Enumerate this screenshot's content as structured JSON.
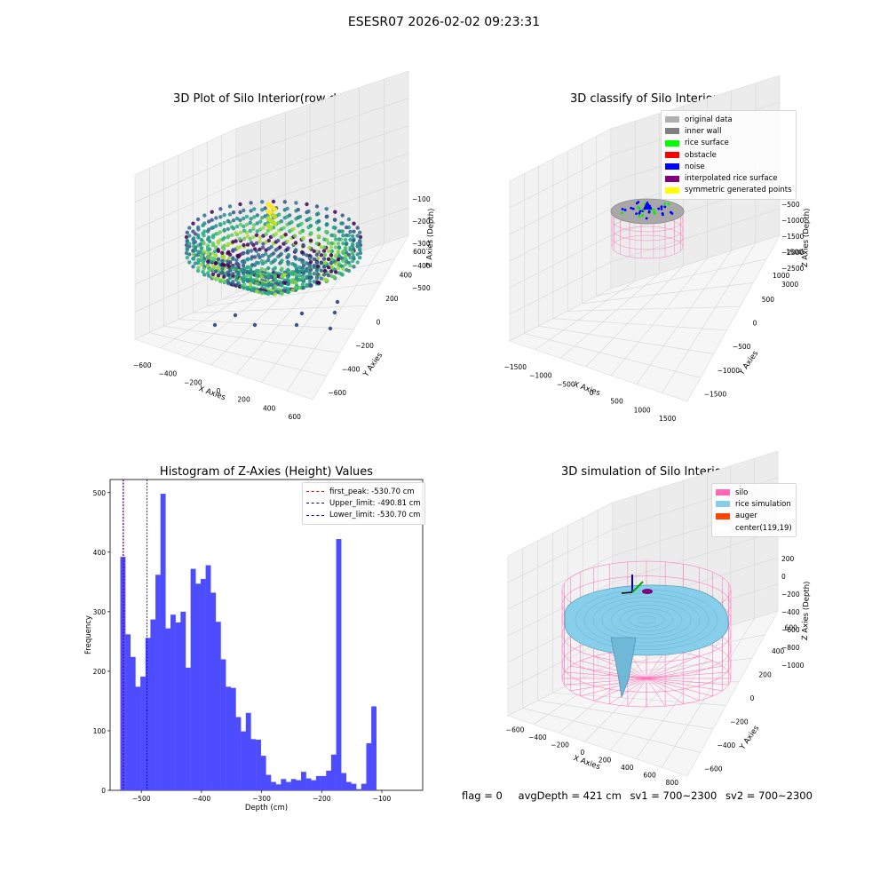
{
  "suptitle": "ESESR07 2026-02-02 09:23:31",
  "panels": {
    "raw": {
      "title": "3D Plot of Silo Interior(row data)",
      "xlabel": "X Axies",
      "ylabel": "Y Axies",
      "zlabel": "Z Axies (Depth)",
      "xticks": [
        "−600",
        "−400",
        "−200",
        "0",
        "200",
        "400",
        "600"
      ],
      "yticks": [
        "−600",
        "−400",
        "−200",
        "0",
        "200",
        "400",
        "600"
      ],
      "zticks": [
        "−100",
        "−200",
        "−300",
        "−400",
        "−500"
      ]
    },
    "classify": {
      "title": "3D classify of Silo Interior",
      "xlabel": "X Axies",
      "ylabel": "Y Axies",
      "zlabel": "Z Axies (Depth)",
      "xticks": [
        "−1500",
        "−1000",
        "−500",
        "0",
        "500",
        "1000",
        "1500"
      ],
      "yticks": [
        "−1500",
        "−1000",
        "−500",
        "0",
        "500",
        "1000",
        "1500"
      ],
      "zticks": [
        "−500",
        "−1000",
        "−1500",
        "−2000",
        "−2500",
        "3000"
      ],
      "legend": [
        {
          "label": "original data",
          "color": "#b0b0b0"
        },
        {
          "label": "inner wall",
          "color": "#808080"
        },
        {
          "label": "rice surface",
          "color": "#00ff00"
        },
        {
          "label": "obstacle",
          "color": "#ff0000"
        },
        {
          "label": "noise",
          "color": "#0000ff"
        },
        {
          "label": "interpolated rice surface",
          "color": "#800080"
        },
        {
          "label": "symmetric generated points",
          "color": "#ffff00"
        }
      ]
    },
    "simulation": {
      "title": "3D simulation of Silo Interior",
      "xlabel": "X Axies",
      "ylabel": "Y Axies",
      "zlabel": "Z Axies (Depth)",
      "xticks": [
        "−600",
        "−400",
        "−200",
        "0",
        "200",
        "400",
        "600",
        "800"
      ],
      "yticks": [
        "−600",
        "−400",
        "−200",
        "0",
        "200",
        "400",
        "600"
      ],
      "zticks": [
        "200",
        "0",
        "−200",
        "−400",
        "−600",
        "−800",
        "−1000"
      ],
      "legend": [
        {
          "label": "silo",
          "color": "#ff69b4"
        },
        {
          "label": "rice simulation",
          "color": "#87ceeb"
        },
        {
          "label": "auger",
          "color": "#ff4500"
        },
        {
          "label": "center(119,19)",
          "color": "#ffffff"
        }
      ]
    }
  },
  "chart_data": {
    "type": "bar",
    "title": "Histogram of Z-Axies (Height) Values",
    "xlabel": "Depth (cm)",
    "ylabel": "Frequency",
    "xlim": [
      -552,
      -32
    ],
    "ylim": [
      0,
      522
    ],
    "xticks": [
      -500,
      -400,
      -300,
      -200,
      -100
    ],
    "yticks": [
      0,
      100,
      200,
      300,
      400,
      500
    ],
    "bin_start": -535,
    "bin_width": 8.35,
    "values": [
      392,
      262,
      224,
      174,
      191,
      256,
      287,
      362,
      498,
      272,
      295,
      282,
      300,
      206,
      372,
      347,
      355,
      378,
      332,
      283,
      220,
      174,
      172,
      123,
      99,
      130,
      86,
      85,
      58,
      26,
      14,
      10,
      19,
      14,
      19,
      17,
      31,
      20,
      17,
      24,
      24,
      33,
      60,
      422,
      29,
      14,
      11,
      2,
      11,
      79,
      141
    ],
    "bar_color": "#4d4dff",
    "vlines": [
      {
        "label": "first_peak: -530.70 cm",
        "x": -530.7,
        "color": "#ff0000"
      },
      {
        "label": "Upper_limit: -490.81 cm",
        "x": -490.81,
        "color": "#0000aa"
      },
      {
        "label": "Lower_limit: -530.70 cm",
        "x": -530.7,
        "color": "#0000ff"
      }
    ],
    "legend_position": "top-right"
  },
  "footer": {
    "flag": "flag = 0",
    "avg": "avgDepth = 421 cm",
    "sv1": "sv1 = 700~2300",
    "sv2": "sv2 = 700~2300"
  }
}
